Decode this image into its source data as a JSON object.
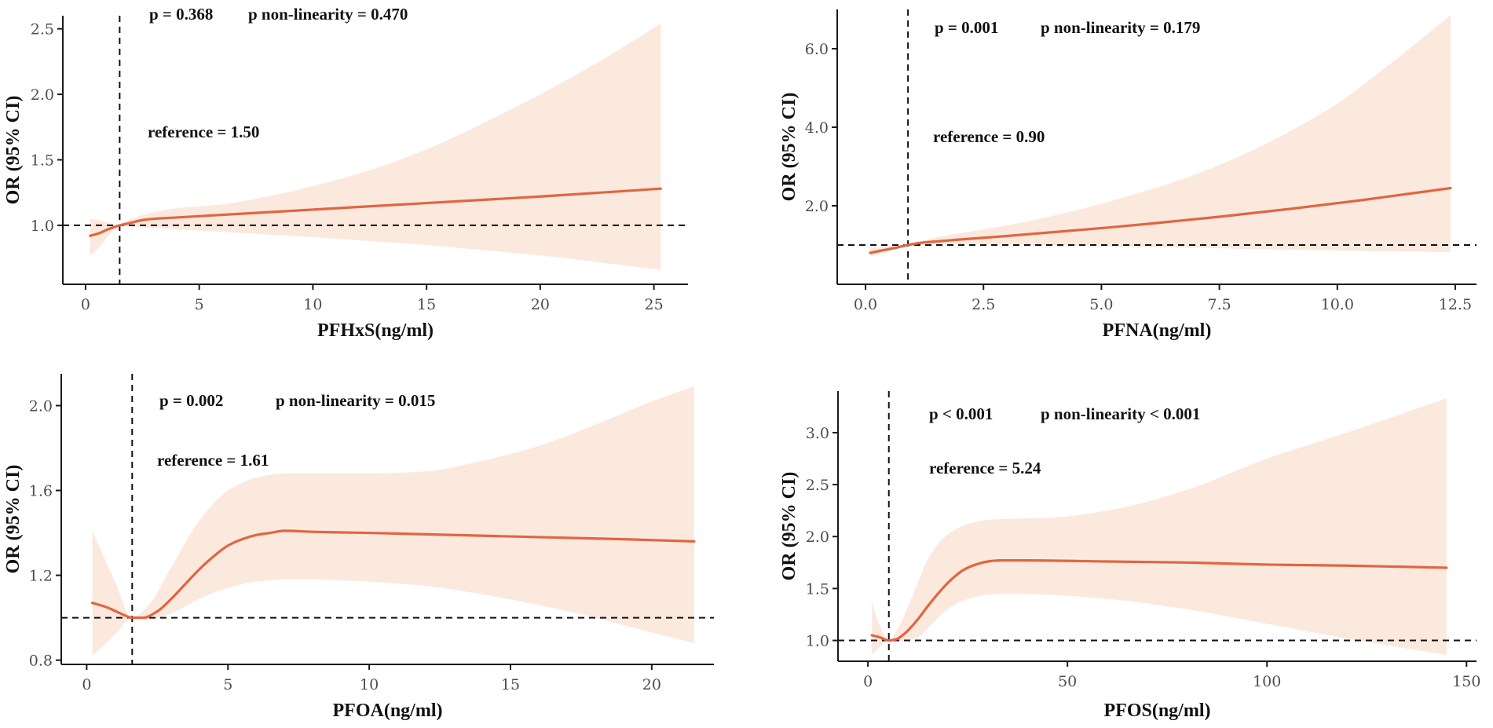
{
  "colors": {
    "curve": "#e06642",
    "band": "#fbe9de",
    "ref": "#111111"
  },
  "chart_data": [
    {
      "type": "line",
      "name": "panel-pfhxs",
      "xlabel": "PFHxS(ng/ml)",
      "ylabel": "OR (95% CI)",
      "xlim": [
        -1,
        26.5
      ],
      "ylim": [
        0.55,
        2.6
      ],
      "xticks": [
        {
          "v": 0,
          "label": "0"
        },
        {
          "v": 5,
          "label": "5"
        },
        {
          "v": 10,
          "label": "10"
        },
        {
          "v": 15,
          "label": "15"
        },
        {
          "v": 20,
          "label": "20"
        },
        {
          "v": 25,
          "label": "25"
        }
      ],
      "yticks": [
        {
          "v": 1.0,
          "label": "1.0"
        },
        {
          "v": 1.5,
          "label": "1.5"
        },
        {
          "v": 2.0,
          "label": "2.0"
        },
        {
          "v": 2.5,
          "label": "2.5"
        }
      ],
      "reference_x": 1.5,
      "hline_y": 1.0,
      "annotations": {
        "p": "p = 0.368",
        "p_nonlinearity": "p non-linearity = 0.470",
        "reference": "reference = 1.50"
      },
      "curve": {
        "x": [
          0.2,
          0.6,
          1.0,
          1.5,
          2.0,
          2.5,
          3.0,
          4.0,
          6.0,
          10.0,
          15.0,
          20.0,
          25.3
        ],
        "y": [
          0.92,
          0.94,
          0.97,
          1.0,
          1.02,
          1.04,
          1.05,
          1.06,
          1.08,
          1.12,
          1.17,
          1.22,
          1.28
        ]
      },
      "band": {
        "x": [
          0.2,
          0.6,
          1.0,
          1.5,
          2.0,
          3.0,
          4.0,
          6.0,
          8.0,
          10.0,
          12.5,
          15.0,
          17.5,
          20.0,
          22.5,
          25.3
        ],
        "lower": [
          0.77,
          0.83,
          0.92,
          1.0,
          0.99,
          0.98,
          0.97,
          0.95,
          0.93,
          0.91,
          0.88,
          0.85,
          0.81,
          0.77,
          0.72,
          0.66
        ],
        "upper": [
          1.05,
          1.04,
          1.02,
          1.0,
          1.05,
          1.1,
          1.13,
          1.16,
          1.22,
          1.3,
          1.42,
          1.58,
          1.78,
          2.0,
          2.24,
          2.54
        ]
      }
    },
    {
      "type": "line",
      "name": "panel-pfna",
      "xlabel": "PFNA(ng/ml)",
      "ylabel": "OR (95% CI)",
      "xlim": [
        -0.6,
        12.95
      ],
      "ylim": [
        0.0,
        7.0
      ],
      "xticks": [
        {
          "v": 0,
          "label": "0.0"
        },
        {
          "v": 2.5,
          "label": "2.5"
        },
        {
          "v": 5.0,
          "label": "5.0"
        },
        {
          "v": 7.5,
          "label": "7.5"
        },
        {
          "v": 10.0,
          "label": "10.0"
        },
        {
          "v": 12.5,
          "label": "12.5"
        }
      ],
      "yticks": [
        {
          "v": 2.0,
          "label": "2.0"
        },
        {
          "v": 4.0,
          "label": "4.0"
        },
        {
          "v": 6.0,
          "label": "6.0"
        }
      ],
      "reference_x": 0.9,
      "hline_y": 1.0,
      "annotations": {
        "p": "p = 0.001",
        "p_nonlinearity": "p non-linearity = 0.179",
        "reference": "reference = 0.90"
      },
      "curve": {
        "x": [
          0.1,
          0.3,
          0.6,
          0.9,
          1.2,
          1.6,
          2.0,
          3.0,
          4.0,
          5.0,
          6.0,
          7.5,
          9.0,
          10.5,
          12.4
        ],
        "y": [
          0.8,
          0.85,
          0.92,
          1.0,
          1.06,
          1.1,
          1.14,
          1.23,
          1.33,
          1.43,
          1.54,
          1.72,
          1.92,
          2.14,
          2.45
        ]
      },
      "band": {
        "x": [
          0.1,
          0.5,
          0.9,
          1.5,
          2.0,
          3.0,
          4.0,
          5.0,
          6.0,
          7.0,
          8.0,
          9.0,
          10.0,
          11.0,
          12.4
        ],
        "lower": [
          0.7,
          0.85,
          1.0,
          1.02,
          1.02,
          1.01,
          0.99,
          0.97,
          0.95,
          0.93,
          0.9,
          0.88,
          0.86,
          0.84,
          0.82
        ],
        "upper": [
          0.92,
          0.98,
          1.0,
          1.2,
          1.3,
          1.5,
          1.75,
          2.05,
          2.4,
          2.8,
          3.3,
          3.9,
          4.6,
          5.5,
          6.85
        ]
      }
    },
    {
      "type": "line",
      "name": "panel-pfoa",
      "xlabel": "PFOA(ng/ml)",
      "ylabel": "OR (95% CI)",
      "xlim": [
        -0.9,
        22.2
      ],
      "ylim": [
        0.78,
        2.15
      ],
      "xticks": [
        {
          "v": 0,
          "label": "0"
        },
        {
          "v": 5,
          "label": "5"
        },
        {
          "v": 10,
          "label": "10"
        },
        {
          "v": 15,
          "label": "15"
        },
        {
          "v": 20,
          "label": "20"
        }
      ],
      "yticks": [
        {
          "v": 0.8,
          "label": "0.8"
        },
        {
          "v": 1.2,
          "label": "1.2"
        },
        {
          "v": 1.6,
          "label": "1.6"
        },
        {
          "v": 2.0,
          "label": "2.0"
        }
      ],
      "reference_x": 1.61,
      "hline_y": 1.0,
      "annotations": {
        "p": "p = 0.002",
        "p_nonlinearity": "p non-linearity = 0.015",
        "reference": "reference = 1.61"
      },
      "curve": {
        "x": [
          0.2,
          0.7,
          1.2,
          1.61,
          2.0,
          2.5,
          3.0,
          3.5,
          4.0,
          4.5,
          5.0,
          5.5,
          6.0,
          6.5,
          7.0,
          8.0,
          10.0,
          13.0,
          16.0,
          19.0,
          21.5
        ],
        "y": [
          1.07,
          1.05,
          1.02,
          1.0,
          1.0,
          1.03,
          1.09,
          1.16,
          1.23,
          1.29,
          1.34,
          1.37,
          1.39,
          1.4,
          1.41,
          1.405,
          1.4,
          1.39,
          1.38,
          1.37,
          1.36
        ]
      },
      "band": {
        "x": [
          0.2,
          1.0,
          1.61,
          2.2,
          3.0,
          4.0,
          5.0,
          6.0,
          7.0,
          8.0,
          10.0,
          12.0,
          14.0,
          16.0,
          18.0,
          20.0,
          21.5
        ],
        "lower": [
          0.82,
          0.92,
          1.0,
          0.99,
          1.02,
          1.09,
          1.14,
          1.17,
          1.18,
          1.18,
          1.17,
          1.15,
          1.11,
          1.06,
          1.0,
          0.93,
          0.88
        ],
        "upper": [
          1.41,
          1.17,
          1.0,
          1.06,
          1.24,
          1.46,
          1.6,
          1.66,
          1.68,
          1.68,
          1.68,
          1.69,
          1.74,
          1.81,
          1.91,
          2.02,
          2.09
        ]
      }
    },
    {
      "type": "line",
      "name": "panel-pfos",
      "xlabel": "PFOS(ng/ml)",
      "ylabel": "OR (95% CI)",
      "xlim": [
        -7.5,
        152.5
      ],
      "ylim": [
        0.8,
        3.4
      ],
      "xticks": [
        {
          "v": 0,
          "label": "0"
        },
        {
          "v": 50,
          "label": "50"
        },
        {
          "v": 100,
          "label": "100"
        },
        {
          "v": 150,
          "label": "150"
        }
      ],
      "yticks": [
        {
          "v": 1.0,
          "label": "1.0"
        },
        {
          "v": 1.5,
          "label": "1.5"
        },
        {
          "v": 2.0,
          "label": "2.0"
        },
        {
          "v": 2.5,
          "label": "2.5"
        },
        {
          "v": 3.0,
          "label": "3.0"
        }
      ],
      "reference_x": 5.24,
      "hline_y": 1.0,
      "annotations": {
        "p": "p < 0.001",
        "p_nonlinearity": "p non-linearity < 0.001",
        "reference": "reference = 5.24"
      },
      "curve": {
        "x": [
          1,
          3,
          5.24,
          7,
          9,
          12,
          15,
          18,
          21,
          24,
          27,
          30,
          33,
          40,
          60,
          80,
          100,
          120,
          145
        ],
        "y": [
          1.05,
          1.03,
          1.0,
          1.01,
          1.06,
          1.18,
          1.33,
          1.47,
          1.59,
          1.68,
          1.73,
          1.76,
          1.77,
          1.77,
          1.76,
          1.75,
          1.73,
          1.72,
          1.7
        ]
      },
      "band": {
        "x": [
          1,
          3,
          5.24,
          8,
          12,
          16,
          20,
          25,
          30,
          35,
          45,
          60,
          80,
          100,
          120,
          145
        ],
        "lower": [
          0.86,
          0.94,
          1.0,
          0.99,
          1.02,
          1.16,
          1.3,
          1.4,
          1.44,
          1.45,
          1.44,
          1.4,
          1.3,
          1.16,
          1.02,
          0.86
        ],
        "upper": [
          1.37,
          1.14,
          1.0,
          1.15,
          1.51,
          1.85,
          2.02,
          2.12,
          2.16,
          2.17,
          2.18,
          2.25,
          2.45,
          2.75,
          3.0,
          3.33
        ]
      }
    }
  ]
}
